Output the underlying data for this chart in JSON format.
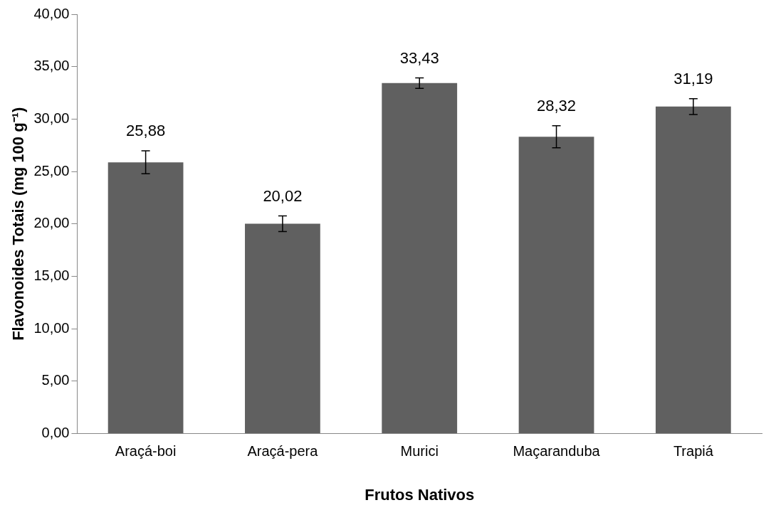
{
  "chart_data": {
    "type": "bar",
    "xlabel": "Frutos Nativos",
    "ylabel": "Flavonoides Totais (mg 100 g⁻¹)",
    "categories": [
      "Araçá-boi",
      "Araçá-pera",
      "Murici",
      "Maçaranduba",
      "Trapiá"
    ],
    "values": [
      25.88,
      20.02,
      33.43,
      28.32,
      31.19
    ],
    "color": "#606060",
    "errors": [
      1.1,
      0.75,
      0.5,
      1.05,
      0.75
    ],
    "value_labels": [
      "25,88",
      "20,02",
      "33,43",
      "28,32",
      "31,19"
    ],
    "ylim": [
      0,
      40
    ],
    "yticks": [
      {
        "value": 0,
        "label": "0,00"
      },
      {
        "value": 5,
        "label": "5,00"
      },
      {
        "value": 10,
        "label": "10,00"
      },
      {
        "value": 15,
        "label": "15,00"
      },
      {
        "value": 20,
        "label": "20,00"
      },
      {
        "value": 25,
        "label": "25,00"
      },
      {
        "value": 30,
        "label": "30,00"
      },
      {
        "value": 35,
        "label": "35,00"
      },
      {
        "value": 40,
        "label": "40,00"
      }
    ],
    "grid": false,
    "legend": false
  }
}
